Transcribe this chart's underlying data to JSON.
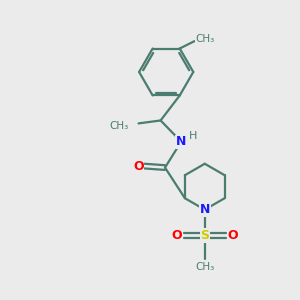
{
  "background_color": "#ebebeb",
  "bond_color": "#4a7c6f",
  "N_color": "#1a1aff",
  "O_color": "#ff0000",
  "S_color": "#cccc00",
  "figsize": [
    3.0,
    3.0
  ],
  "dpi": 100,
  "xlim": [
    0,
    10
  ],
  "ylim": [
    0,
    10
  ]
}
